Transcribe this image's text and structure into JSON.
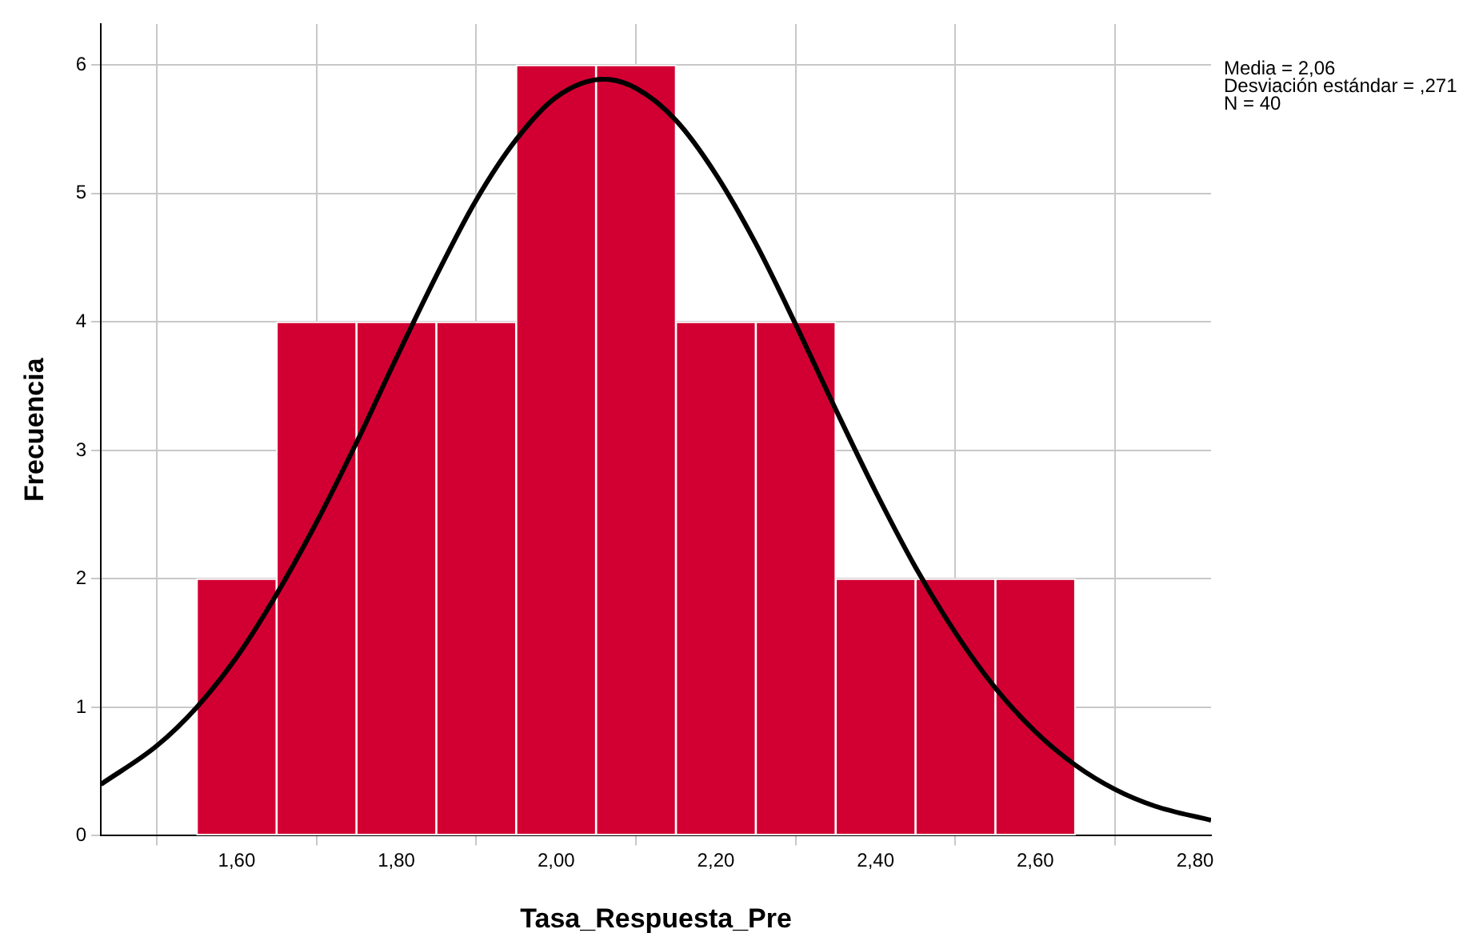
{
  "chart_data": {
    "type": "histogram",
    "xlabel": "Tasa_Respuesta_Pre",
    "ylabel": "Frecuencia",
    "bins": [
      1.55,
      1.65,
      1.75,
      1.85,
      1.95,
      2.05,
      2.15,
      2.25,
      2.35,
      2.45,
      2.55,
      2.65
    ],
    "values": [
      2,
      4,
      4,
      4,
      6,
      6,
      4,
      4,
      2,
      2,
      2
    ],
    "color": "#d20032",
    "series": [
      {
        "type": "line",
        "color": "#000000",
        "x": [
          1.43,
          1.5,
          1.55,
          1.6,
          1.65,
          1.7,
          1.75,
          1.8,
          1.85,
          1.9,
          1.95,
          2.0,
          2.06,
          2.1,
          2.15,
          2.2,
          2.25,
          2.3,
          2.35,
          2.4,
          2.45,
          2.5,
          2.55,
          2.6,
          2.65,
          2.7,
          2.75,
          2.82
        ],
        "values": [
          0.4,
          0.7,
          1.0,
          1.39,
          1.88,
          2.44,
          3.06,
          3.72,
          4.36,
          4.95,
          5.42,
          5.75,
          5.89,
          5.82,
          5.57,
          5.15,
          4.61,
          3.98,
          3.32,
          2.68,
          2.09,
          1.58,
          1.15,
          0.81,
          0.55,
          0.36,
          0.23,
          0.12
        ]
      }
    ],
    "xlim": [
      1.43,
      2.82
    ],
    "xticks": [
      {
        "value": 1.6,
        "label": "1,60"
      },
      {
        "value": 1.8,
        "label": "1,80"
      },
      {
        "value": 2.0,
        "label": "2,00"
      },
      {
        "value": 2.2,
        "label": "2,20"
      },
      {
        "value": 2.4,
        "label": "2,40"
      },
      {
        "value": 2.6,
        "label": "2,60"
      },
      {
        "value": 2.8,
        "label": "2,80"
      }
    ],
    "ylim": [
      0,
      6.32
    ],
    "yticks": [
      0,
      1,
      2,
      3,
      4,
      5,
      6
    ],
    "grid": true,
    "legend": false,
    "marker": "none",
    "line_style": "solid",
    "annotations": [
      "Media = 2,06",
      "Desviación estándar = ,271",
      "N = 40"
    ]
  }
}
